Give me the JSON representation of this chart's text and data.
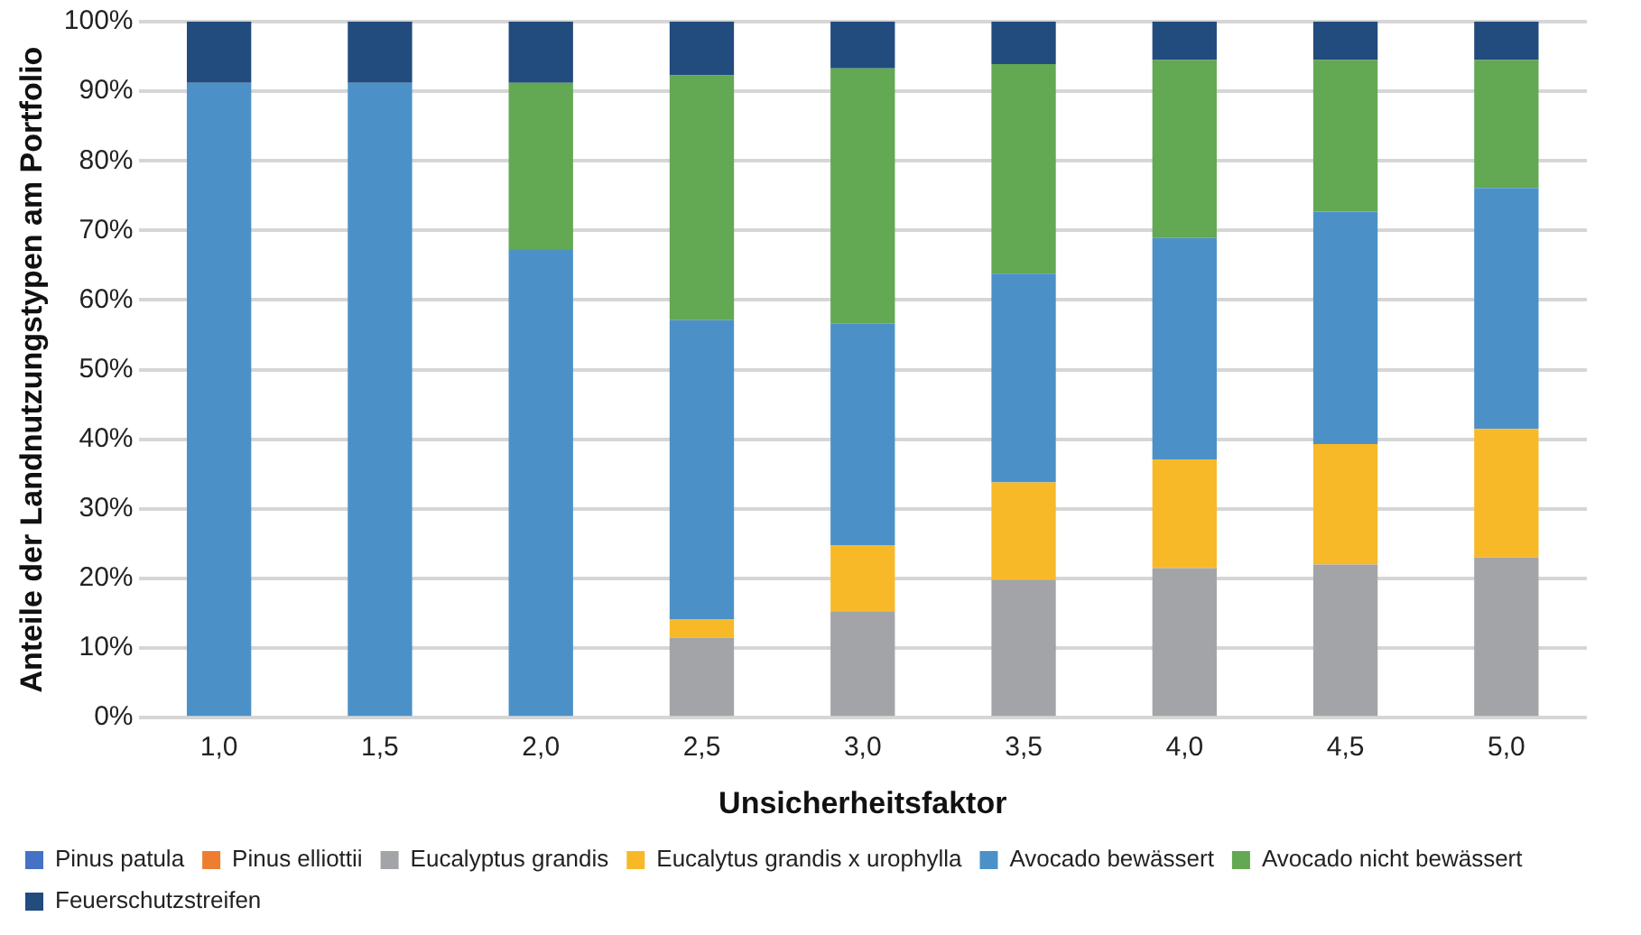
{
  "chart_data": {
    "type": "bar",
    "stacked": true,
    "xlabel": "Unsicherheitsfaktor",
    "ylabel": "Anteile der Landnutzungstypen am Portfolio",
    "categories": [
      "1,0",
      "1,5",
      "2,0",
      "2,5",
      "3,0",
      "3,5",
      "4,0",
      "4,5",
      "5,0"
    ],
    "series": [
      {
        "name": "Pinus patula",
        "color": "#4472c4",
        "values": [
          0,
          0,
          0,
          0,
          0,
          0,
          0,
          0,
          0
        ]
      },
      {
        "name": "Pinus elliottii",
        "color": "#ed7d31",
        "values": [
          0,
          0,
          0,
          0,
          0,
          0,
          0,
          0,
          0
        ]
      },
      {
        "name": "Eucalyptus grandis",
        "color": "#a3a4a7",
        "values": [
          0,
          0,
          0,
          11.5,
          15.3,
          19.8,
          21.5,
          22.0,
          23.0
        ]
      },
      {
        "name": "Eucalytus grandis x urophylla",
        "color": "#f7b928",
        "values": [
          0,
          0,
          0,
          2.6,
          9.5,
          14.0,
          15.6,
          17.3,
          18.5
        ]
      },
      {
        "name": "Avocado bewässert",
        "color": "#4b91c8",
        "values": [
          91.2,
          91.2,
          67.2,
          43.0,
          31.8,
          30.0,
          31.8,
          33.4,
          34.6
        ]
      },
      {
        "name": "Avocado nicht bewässert",
        "color": "#63a853",
        "values": [
          0,
          0,
          24.0,
          35.2,
          36.7,
          30.1,
          25.6,
          21.8,
          18.4
        ]
      },
      {
        "name": "Feuerschutzstreifen",
        "color": "#224b7e",
        "values": [
          8.8,
          8.8,
          8.8,
          7.7,
          6.7,
          6.1,
          5.5,
          5.5,
          5.5
        ]
      }
    ],
    "ylim": [
      0,
      100
    ],
    "yticks": [
      {
        "value": 0,
        "label": "0%"
      },
      {
        "value": 10,
        "label": "10%"
      },
      {
        "value": 20,
        "label": "20%"
      },
      {
        "value": 30,
        "label": "30%"
      },
      {
        "value": 40,
        "label": "40%"
      },
      {
        "value": 50,
        "label": "50%"
      },
      {
        "value": 60,
        "label": "60%"
      },
      {
        "value": 70,
        "label": "70%"
      },
      {
        "value": 80,
        "label": "80%"
      },
      {
        "value": 90,
        "label": "90%"
      },
      {
        "value": 100,
        "label": "100%"
      }
    ],
    "grid": "y",
    "legend": "bottom"
  }
}
